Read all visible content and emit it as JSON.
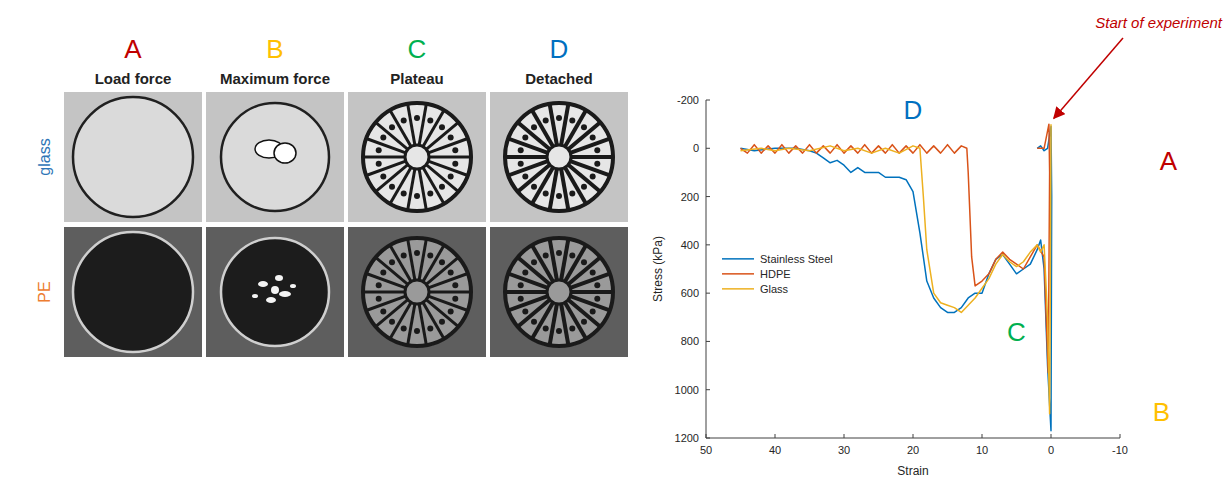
{
  "panel": {
    "columns": [
      {
        "letter": "A",
        "title": "Load force",
        "color": "#C00000"
      },
      {
        "letter": "B",
        "title": "Maximum force",
        "color": "#FFC000"
      },
      {
        "letter": "C",
        "title": "Plateau",
        "color": "#00B050"
      },
      {
        "letter": "D",
        "title": "Detached",
        "color": "#0070C0"
      }
    ],
    "rows": [
      {
        "label": "glass",
        "color": "#2E75B6"
      },
      {
        "label": "PE",
        "color": "#ED7D31"
      }
    ]
  },
  "chart_data": {
    "type": "line",
    "x_label": "Strain",
    "y_label": "Stress (kPa)",
    "xlim": [
      50,
      -10
    ],
    "xticks": [
      50,
      40,
      30,
      20,
      10,
      0,
      -10
    ],
    "ylim": [
      -200,
      1200
    ],
    "yticks": [
      -200,
      0,
      200,
      400,
      600,
      800,
      1000,
      1200
    ],
    "legend": "left",
    "series": [
      {
        "name": "Stainless Steel",
        "color": "#0072BD",
        "x": [
          2,
          1.5,
          1,
          0.5,
          0,
          -0.1,
          0,
          0.5,
          1,
          1.5,
          2,
          3,
          4,
          5,
          6,
          7,
          8,
          9,
          10,
          11,
          12,
          13,
          14,
          15,
          16,
          17,
          18,
          19,
          20,
          21,
          22,
          24,
          25,
          26,
          27,
          28,
          29,
          30,
          31,
          32,
          33,
          34,
          35,
          37,
          40,
          43,
          45
        ],
        "values": [
          0,
          -10,
          10,
          0,
          -90,
          200,
          1170,
          900,
          500,
          380,
          420,
          480,
          500,
          520,
          480,
          440,
          460,
          520,
          600,
          600,
          620,
          660,
          680,
          680,
          660,
          620,
          550,
          350,
          180,
          130,
          120,
          120,
          100,
          100,
          100,
          80,
          100,
          70,
          50,
          60,
          40,
          20,
          10,
          0,
          0,
          10,
          0
        ]
      },
      {
        "name": "HDPE",
        "color": "#D95319",
        "x": [
          2,
          1,
          0.3,
          0.2,
          0.4,
          0.7,
          1,
          2,
          3,
          4,
          5,
          6,
          7,
          8,
          9,
          10,
          11,
          11.5,
          12,
          12.2,
          13,
          14,
          15,
          16,
          17,
          18,
          19,
          20,
          21,
          22,
          23,
          24,
          25,
          26,
          27,
          28,
          29,
          30,
          31,
          32,
          33,
          34,
          35,
          36,
          37,
          38,
          39,
          40,
          41,
          42,
          43,
          44,
          45
        ],
        "values": [
          0,
          0,
          -100,
          100,
          930,
          700,
          450,
          400,
          450,
          500,
          480,
          460,
          430,
          460,
          520,
          550,
          570,
          450,
          100,
          0,
          -10,
          20,
          -15,
          20,
          -10,
          20,
          -15,
          20,
          -10,
          20,
          -15,
          20,
          -10,
          20,
          -15,
          20,
          -10,
          20,
          -15,
          20,
          -10,
          20,
          -15,
          20,
          -10,
          20,
          -15,
          20,
          -10,
          20,
          -15,
          20,
          0
        ]
      },
      {
        "name": "Glass",
        "color": "#EDB120",
        "x": [
          0,
          0.1,
          0.2,
          0.5,
          1,
          1.5,
          2,
          3,
          4,
          5,
          6,
          7,
          8,
          9,
          10,
          11,
          12,
          13,
          14,
          15,
          16,
          17,
          18,
          18.5,
          19,
          20,
          22,
          24,
          26,
          28,
          30,
          32,
          35,
          38,
          40,
          42,
          45
        ],
        "values": [
          -100,
          600,
          1100,
          700,
          400,
          430,
          400,
          430,
          470,
          490,
          470,
          440,
          480,
          540,
          580,
          620,
          650,
          680,
          660,
          650,
          640,
          600,
          420,
          200,
          0,
          -10,
          20,
          0,
          20,
          0,
          10,
          -10,
          10,
          0,
          10,
          0,
          10
        ]
      }
    ],
    "annotations": [
      {
        "text": "A",
        "x": -17,
        "y": 90,
        "color": "#C00000"
      },
      {
        "text": "B",
        "x": -16,
        "y": 1130,
        "color": "#FFC000"
      },
      {
        "text": "C",
        "x": 5,
        "y": 800,
        "color": "#00B050"
      },
      {
        "text": "D",
        "x": 20,
        "y": -120,
        "color": "#0070C0"
      }
    ],
    "start_annotation": {
      "text": "Start of experiment",
      "x": 0,
      "y": -100,
      "color": "#C00000"
    }
  }
}
